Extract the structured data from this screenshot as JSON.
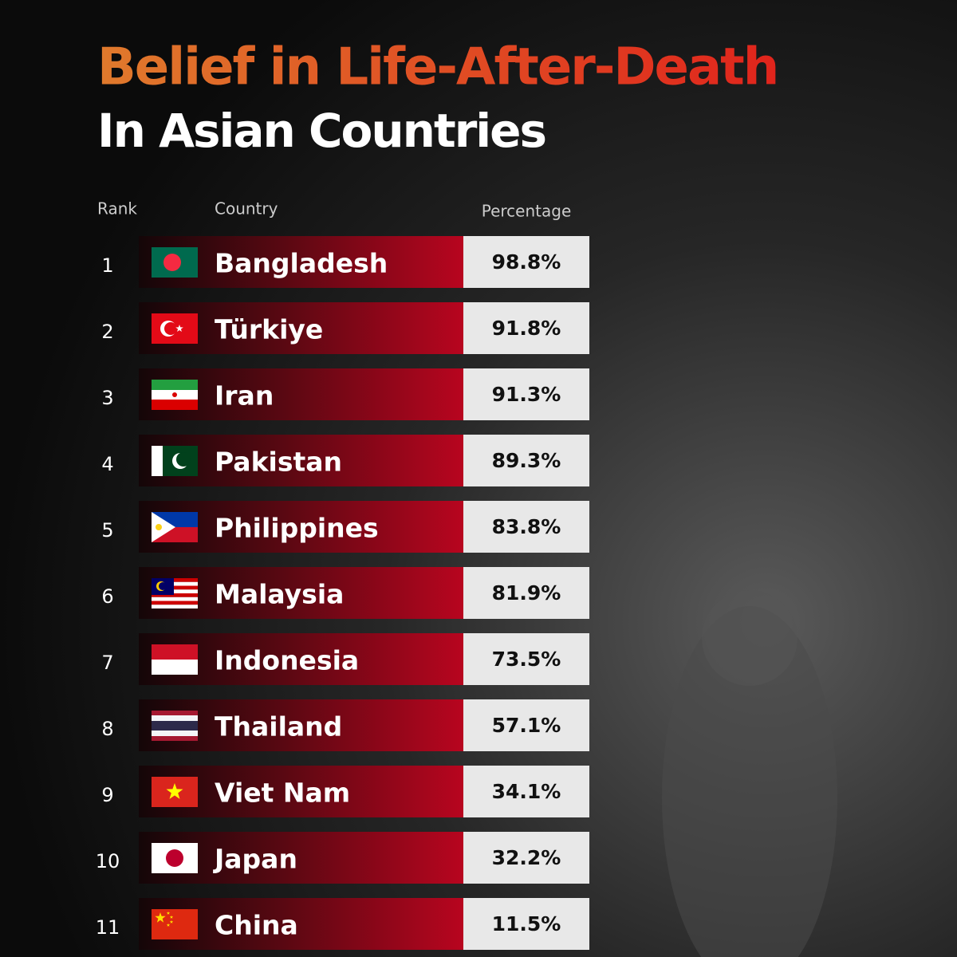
{
  "header": {
    "title": "Belief in Life-After-Death",
    "subtitle": "In Asian Countries"
  },
  "table": {
    "columns": [
      "Rank",
      "Country",
      "Percentage"
    ],
    "rows": [
      [
        "1",
        "Bangladesh",
        "98.8%"
      ],
      [
        "2",
        "Türkiye",
        "91.8%"
      ],
      [
        "3",
        "Iran",
        "91.3%"
      ],
      [
        "4",
        "Pakistan",
        "89.3%"
      ],
      [
        "5",
        "Philippines",
        "83.8%"
      ],
      [
        "6",
        "Malaysia",
        "81.9%"
      ],
      [
        "7",
        "Indonesia",
        "73.5%"
      ],
      [
        "8",
        "Thailand",
        "57.1%"
      ],
      [
        "9",
        "Viet Nam",
        "34.1%"
      ],
      [
        "10",
        "Japan",
        "32.2%"
      ],
      [
        "11",
        "China",
        "11.5%"
      ]
    ]
  }
}
